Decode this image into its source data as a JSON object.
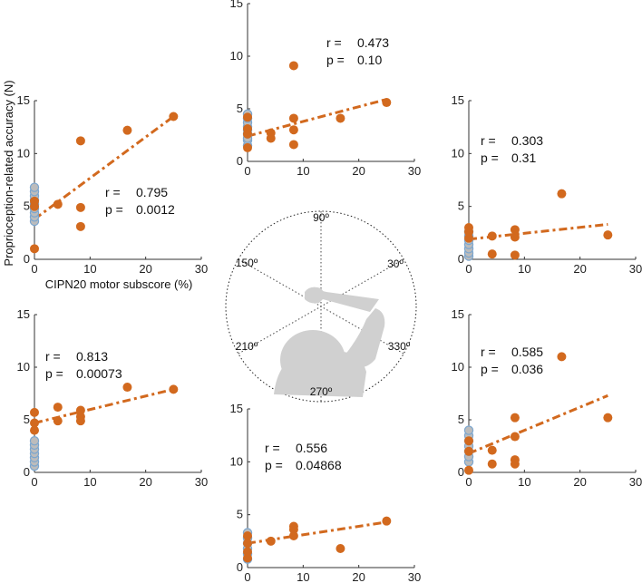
{
  "figure": {
    "ylabel": "Proprioception-related accuracy (N)",
    "xlabel": "CIPN20 motor subscore (%)"
  },
  "colors": {
    "orange": "#d2691e",
    "grey_fill": "#bcbcbc",
    "blue_edge": "#7ba6cf",
    "axis": "#333333"
  },
  "dial": {
    "angle_labels": [
      "90º",
      "30º",
      "330º",
      "270º",
      "210º",
      "150º"
    ],
    "image": "shoulder-arm-silhouette"
  },
  "chart_data": [
    {
      "id": "p90",
      "type": "scatter",
      "direction": "90",
      "xlim": [
        0,
        30
      ],
      "ylim": [
        0,
        15
      ],
      "xticks": [
        0,
        10,
        20,
        30
      ],
      "yticks": [
        0,
        5,
        10,
        15
      ],
      "stats": {
        "r_label": "r =",
        "r_value": "0.473",
        "p_label": "p =",
        "p_value": "0.10"
      },
      "control_x": 0,
      "control_y": [
        1.5,
        2.0,
        2.2,
        2.6,
        3.0,
        3.3,
        3.7,
        4.1,
        4.5
      ],
      "patients_x": [
        0,
        0,
        0,
        0,
        4.2,
        4.2,
        8.3,
        8.3,
        8.3,
        8.3,
        16.7,
        25
      ],
      "patients_y": [
        1.3,
        2.6,
        3.1,
        4.2,
        2.2,
        2.7,
        9.1,
        4.1,
        3.0,
        1.6,
        4.1,
        5.6
      ],
      "fit": {
        "x": [
          0,
          25
        ],
        "y": [
          2.4,
          5.9
        ]
      }
    },
    {
      "id": "p150",
      "type": "scatter",
      "direction": "150",
      "xlim": [
        0,
        30
      ],
      "ylim": [
        0,
        15
      ],
      "xticks": [
        0,
        10,
        20,
        30
      ],
      "yticks": [
        0,
        5,
        10,
        15
      ],
      "stats": {
        "r_label": "r =",
        "r_value": "0.795",
        "p_label": "p =",
        "p_value": "0.0012"
      },
      "control_x": 0,
      "control_y": [
        3.6,
        4.0,
        4.4,
        4.8,
        5.2,
        5.6,
        6.0,
        6.4,
        6.8
      ],
      "patients_x": [
        0,
        0,
        0,
        4.2,
        8.3,
        8.3,
        8.3,
        16.7,
        25
      ],
      "patients_y": [
        1.0,
        5.0,
        5.5,
        5.2,
        11.2,
        4.9,
        3.1,
        12.2,
        13.5
      ],
      "fit": {
        "x": [
          0,
          25
        ],
        "y": [
          3.8,
          13.5
        ]
      }
    },
    {
      "id": "p30",
      "type": "scatter",
      "direction": "30",
      "xlim": [
        0,
        30
      ],
      "ylim": [
        0,
        15
      ],
      "xticks": [
        0,
        10,
        20,
        30
      ],
      "yticks": [
        0,
        5,
        10,
        15
      ],
      "stats": {
        "r_label": "r =",
        "r_value": "0.303",
        "p_label": "p =",
        "p_value": "0.31"
      },
      "control_x": 0,
      "control_y": [
        0.3,
        0.6,
        1.0,
        1.4,
        1.8,
        2.2,
        2.6
      ],
      "patients_x": [
        0,
        0,
        0,
        4.2,
        4.2,
        8.3,
        8.3,
        8.3,
        16.7,
        25
      ],
      "patients_y": [
        2.0,
        2.6,
        3.0,
        2.2,
        0.5,
        2.8,
        2.1,
        0.4,
        6.2,
        2.3
      ],
      "fit": {
        "x": [
          0,
          25
        ],
        "y": [
          1.9,
          3.3
        ]
      }
    },
    {
      "id": "p210",
      "type": "scatter",
      "direction": "210",
      "xlim": [
        0,
        30
      ],
      "ylim": [
        0,
        15
      ],
      "xticks": [
        0,
        10,
        20,
        30
      ],
      "yticks": [
        0,
        5,
        10,
        15
      ],
      "stats": {
        "r_label": "r =",
        "r_value": "0.813",
        "p_label": "p =",
        "p_value": "0.00073"
      },
      "control_x": 0,
      "control_y": [
        0.6,
        1.0,
        1.4,
        1.8,
        2.2,
        2.6,
        3.0
      ],
      "patients_x": [
        0,
        0,
        0,
        4.2,
        4.2,
        8.3,
        8.3,
        8.3,
        16.7,
        25
      ],
      "patients_y": [
        4.0,
        4.7,
        5.7,
        6.2,
        4.9,
        5.9,
        5.3,
        4.9,
        8.1,
        7.9
      ],
      "fit": {
        "x": [
          0,
          25
        ],
        "y": [
          4.7,
          7.9
        ]
      }
    },
    {
      "id": "p330",
      "type": "scatter",
      "direction": "330",
      "xlim": [
        0,
        30
      ],
      "ylim": [
        0,
        15
      ],
      "xticks": [
        0,
        10,
        20,
        30
      ],
      "yticks": [
        0,
        5,
        10,
        15
      ],
      "stats": {
        "r_label": "r =",
        "r_value": "0.585",
        "p_label": "p =",
        "p_value": "0.036"
      },
      "control_x": 0,
      "control_y": [
        1.0,
        1.5,
        2.0,
        2.5,
        3.0,
        3.5,
        4.0
      ],
      "patients_x": [
        0,
        0,
        0,
        4.2,
        4.2,
        8.3,
        8.3,
        8.3,
        8.3,
        16.7,
        25
      ],
      "patients_y": [
        0.2,
        2.0,
        3.0,
        2.1,
        0.8,
        5.2,
        3.4,
        1.2,
        0.8,
        11.0,
        5.2
      ],
      "fit": {
        "x": [
          0,
          25
        ],
        "y": [
          1.8,
          7.3
        ]
      }
    },
    {
      "id": "p270",
      "type": "scatter",
      "direction": "270",
      "xlim": [
        0,
        30
      ],
      "ylim": [
        0,
        15
      ],
      "xticks": [
        0,
        10,
        20,
        30
      ],
      "yticks": [
        0,
        5,
        10,
        15
      ],
      "stats": {
        "r_label": "r =",
        "r_value": "0.556",
        "p_label": "p =",
        "p_value": "0.04868"
      },
      "control_x": 0,
      "control_y": [
        0.8,
        1.3,
        1.8,
        2.3,
        2.8,
        3.3
      ],
      "patients_x": [
        0,
        0,
        0,
        0,
        4.2,
        8.3,
        8.3,
        8.3,
        16.7,
        25
      ],
      "patients_y": [
        0.9,
        1.5,
        2.3,
        3.0,
        2.5,
        3.9,
        3.6,
        3.0,
        1.8,
        4.4
      ],
      "fit": {
        "x": [
          0,
          25
        ],
        "y": [
          2.3,
          4.3
        ]
      }
    }
  ]
}
